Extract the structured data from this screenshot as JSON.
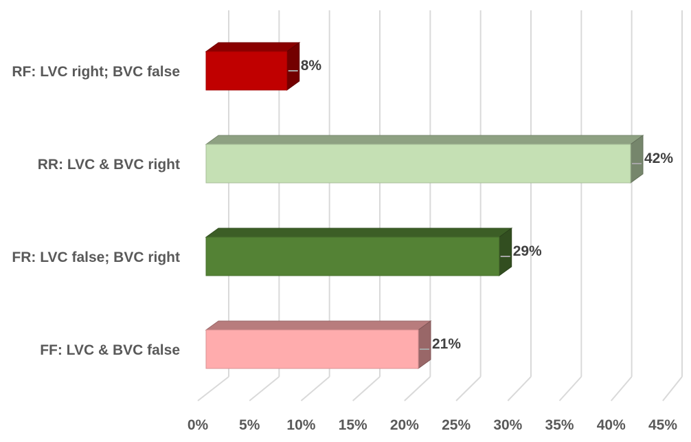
{
  "chart_data": {
    "type": "bar",
    "orientation": "horizontal",
    "style": "3d",
    "categories": [
      "RF: LVC right; BVC false",
      "RR: LVC & BVC right",
      "FR: LVC false; BVC right",
      "FF: LVC & BVC false"
    ],
    "values": [
      8,
      42,
      29,
      21
    ],
    "value_labels": [
      "8%",
      "42%",
      "29%",
      "21%"
    ],
    "colors": [
      "#C00000",
      "#C5E0B4",
      "#548235",
      "#FFACAD"
    ],
    "xlim": [
      0,
      45
    ],
    "xticks": [
      "0%",
      "5%",
      "10%",
      "15%",
      "20%",
      "25%",
      "30%",
      "35%",
      "40%",
      "45%"
    ],
    "grid": true,
    "legend": "none",
    "title": "",
    "xlabel": "",
    "ylabel": ""
  }
}
